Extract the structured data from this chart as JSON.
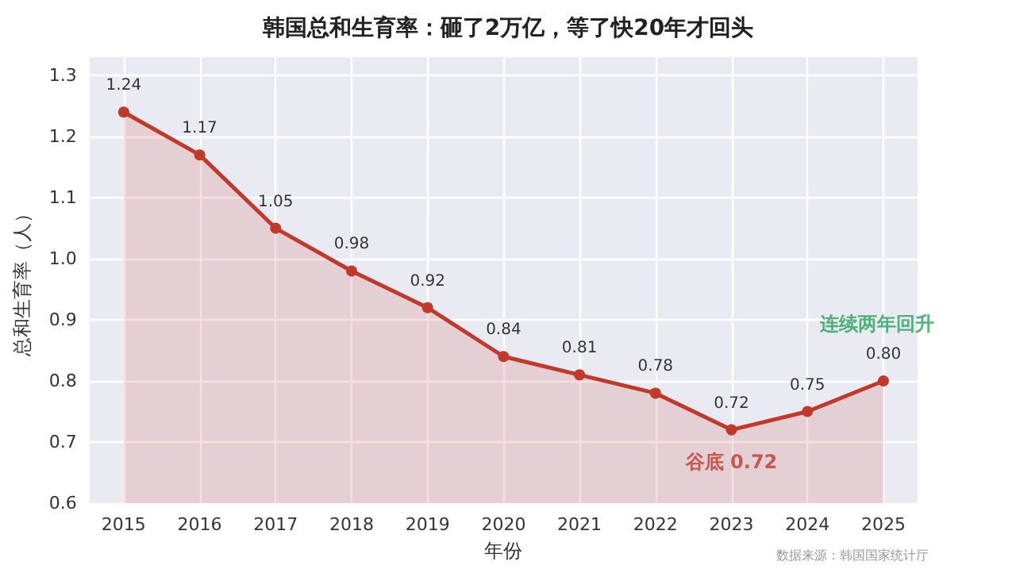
{
  "chart_data": {
    "type": "area",
    "title": "韩国总和生育率：砸了2万亿，等了快20年才回头",
    "xlabel": "年份",
    "ylabel": "总和生育率（人）",
    "x": [
      2015,
      2016,
      2017,
      2018,
      2019,
      2020,
      2021,
      2022,
      2023,
      2024,
      2025
    ],
    "series": [
      {
        "color": "#c0392b",
        "values": [
          1.24,
          1.17,
          1.05,
          0.98,
          0.92,
          0.84,
          0.81,
          0.78,
          0.72,
          0.75,
          0.8
        ],
        "value_labels": [
          "1.24",
          "1.17",
          "1.05",
          "0.98",
          "0.92",
          "0.84",
          "0.81",
          "0.78",
          "0.72",
          "0.75",
          "0.80"
        ]
      }
    ],
    "xlim": [
      2014.55,
      2025.45
    ],
    "xticks": [
      2015,
      2016,
      2017,
      2018,
      2019,
      2020,
      2021,
      2022,
      2023,
      2024,
      2025
    ],
    "ylim": [
      0.6,
      1.33
    ],
    "yticks": [
      {
        "value": 0.6,
        "label": "0.6"
      },
      {
        "value": 0.7,
        "label": "0.7"
      },
      {
        "value": 0.8,
        "label": "0.8"
      },
      {
        "value": 0.9,
        "label": "0.9"
      },
      {
        "value": 1,
        "label": "1.0"
      },
      {
        "value": 1.1,
        "label": "1.1"
      },
      {
        "value": 1.2,
        "label": "1.2"
      },
      {
        "value": 1.3,
        "label": "1.3"
      }
    ],
    "annotations": [
      {
        "text": "谷底 0.72",
        "x": 2023,
        "y": 0.72
      },
      {
        "text": "连续两年回升",
        "x": 2025,
        "y": 0.8
      },
      "数据来源：韩国国家统计厅"
    ],
    "grid": true,
    "marker": "circle",
    "line_style": "solid"
  }
}
